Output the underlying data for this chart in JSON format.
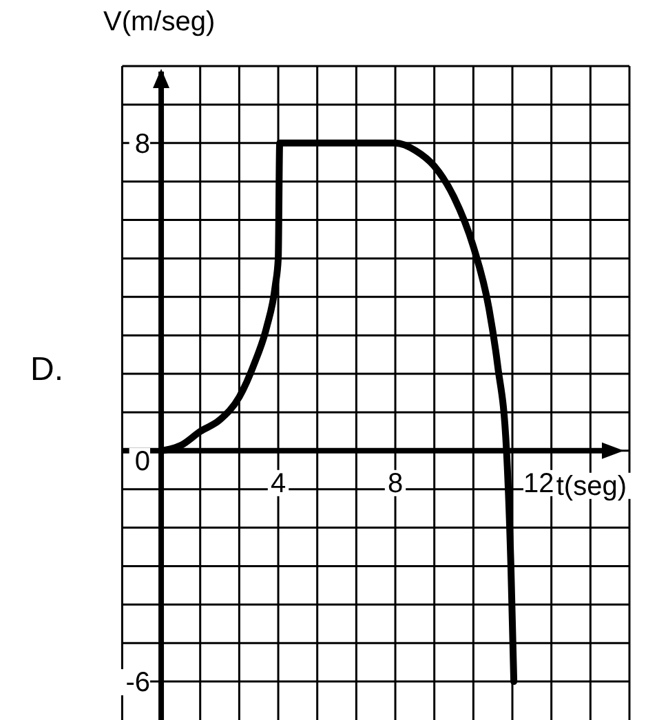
{
  "chart_data": {
    "type": "line",
    "xlabel": "t(seg)",
    "ylabel": "V(m/seg)",
    "annotations": [
      "D."
    ],
    "x": [
      0,
      0.7,
      1.33,
      2,
      2.67,
      3.2,
      3.6,
      3.9,
      4,
      4.05,
      8,
      8.7,
      9.33,
      10,
      10.67,
      11.2,
      11.5,
      11.8,
      11.95,
      12.05
    ],
    "series": [
      {
        "color": "#000000",
        "values": [
          0,
          0.15,
          0.5,
          0.8,
          1.4,
          2.3,
          3.2,
          4.3,
          5,
          8,
          8,
          7.8,
          7.4,
          6.6,
          5.3,
          3.7,
          2.2,
          0,
          -3,
          -6
        ]
      }
    ],
    "xlim": [
      -1.333,
      16
    ],
    "ylim": [
      -7,
      10
    ],
    "xticks": [
      {
        "value": -1.333,
        "label": null
      },
      {
        "value": 1.333,
        "label": null
      },
      {
        "value": 2.667,
        "label": null
      },
      4,
      {
        "value": 5.333,
        "label": null
      },
      {
        "value": 6.667,
        "label": null
      },
      8,
      {
        "value": 9.333,
        "label": null
      },
      {
        "value": 10.667,
        "label": null
      },
      12,
      {
        "value": 13.333,
        "label": null
      },
      {
        "value": 14.667,
        "label": null
      },
      {
        "value": 16,
        "label": null
      }
    ],
    "yticks": [
      -6,
      {
        "value": -5,
        "label": null
      },
      {
        "value": -4,
        "label": null
      },
      {
        "value": -3,
        "label": null
      },
      {
        "value": -2,
        "label": null
      },
      {
        "value": -1,
        "label": null
      },
      0,
      {
        "value": 1,
        "label": null
      },
      {
        "value": 2,
        "label": null
      },
      {
        "value": 3,
        "label": null
      },
      {
        "value": 4,
        "label": null
      },
      {
        "value": 5,
        "label": null
      },
      {
        "value": 6,
        "label": null
      },
      {
        "value": 7,
        "label": null
      },
      8,
      {
        "value": 9,
        "label": null
      },
      {
        "value": 10,
        "label": null
      }
    ],
    "grid": true,
    "marker": "none",
    "line_style": "solid"
  }
}
